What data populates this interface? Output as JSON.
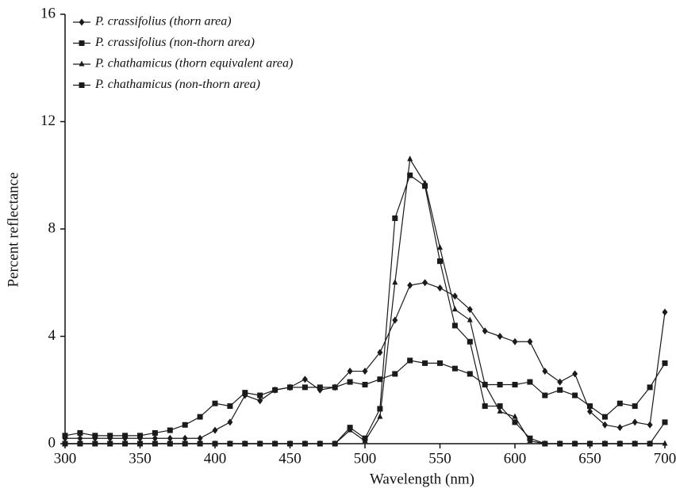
{
  "chart_data": {
    "type": "line",
    "xlabel": "Wavelength (nm)",
    "ylabel": "Percent reflectance",
    "x": [
      300,
      310,
      320,
      330,
      340,
      350,
      360,
      370,
      380,
      390,
      400,
      410,
      420,
      430,
      440,
      450,
      460,
      470,
      480,
      490,
      500,
      510,
      520,
      530,
      540,
      550,
      560,
      570,
      580,
      590,
      600,
      610,
      620,
      630,
      640,
      650,
      660,
      670,
      680,
      690,
      700
    ],
    "xlim": [
      300,
      700
    ],
    "xticks": [
      300,
      350,
      400,
      450,
      500,
      550,
      600,
      650,
      700
    ],
    "ylim": [
      0,
      16
    ],
    "yticks": [
      0,
      4,
      8,
      12,
      16
    ],
    "legend": "upper left",
    "series": [
      {
        "name": "P. crassifolius (thorn area)",
        "color": "#1a1a1a",
        "marker": "diamond",
        "values": [
          0.2,
          0.2,
          0.2,
          0.2,
          0.2,
          0.2,
          0.2,
          0.2,
          0.2,
          0.2,
          0.5,
          0.8,
          1.8,
          1.6,
          2.0,
          2.1,
          2.4,
          2.0,
          2.1,
          2.7,
          2.7,
          3.4,
          4.6,
          5.9,
          6.0,
          5.8,
          5.5,
          5.0,
          4.2,
          4.0,
          3.8,
          3.8,
          2.7,
          2.3,
          2.6,
          1.2,
          0.7,
          0.6,
          0.8,
          0.7,
          4.9
        ]
      },
      {
        "name": "P. crassifolius (non-thorn area)",
        "color": "#1a1a1a",
        "marker": "square",
        "values": [
          0.3,
          0.4,
          0.3,
          0.3,
          0.3,
          0.3,
          0.4,
          0.5,
          0.7,
          1.0,
          1.5,
          1.4,
          1.9,
          1.8,
          2.0,
          2.1,
          2.1,
          2.1,
          2.1,
          2.3,
          2.2,
          2.4,
          2.6,
          3.1,
          3.0,
          3.0,
          2.8,
          2.6,
          2.2,
          2.2,
          2.2,
          2.3,
          1.8,
          2.0,
          1.8,
          1.4,
          1.0,
          1.5,
          1.4,
          2.1,
          3.0
        ]
      },
      {
        "name": "P. chathamicus (thorn equivalent area)",
        "color": "#1a1a1a",
        "marker": "triangle",
        "values": [
          0,
          0,
          0,
          0,
          0,
          0,
          0,
          0,
          0,
          0,
          0,
          0,
          0,
          0,
          0,
          0,
          0,
          0,
          0,
          0.5,
          0.1,
          1.0,
          6.0,
          10.6,
          9.7,
          7.3,
          5.0,
          4.6,
          2.2,
          1.2,
          1.0,
          0.1,
          0,
          0,
          0,
          0,
          0,
          0,
          0,
          0,
          0
        ]
      },
      {
        "name": "P. chathamicus (non-thorn area)",
        "color": "#1a1a1a",
        "marker": "square",
        "values": [
          0,
          0,
          0,
          0,
          0,
          0,
          0,
          0,
          0,
          0,
          0,
          0,
          0,
          0,
          0,
          0,
          0,
          0,
          0,
          0.6,
          0.2,
          1.3,
          8.4,
          10.0,
          9.6,
          6.8,
          4.4,
          3.8,
          1.4,
          1.4,
          0.8,
          0.2,
          0,
          0,
          0,
          0,
          0,
          0,
          0,
          0,
          0.8
        ]
      }
    ]
  }
}
